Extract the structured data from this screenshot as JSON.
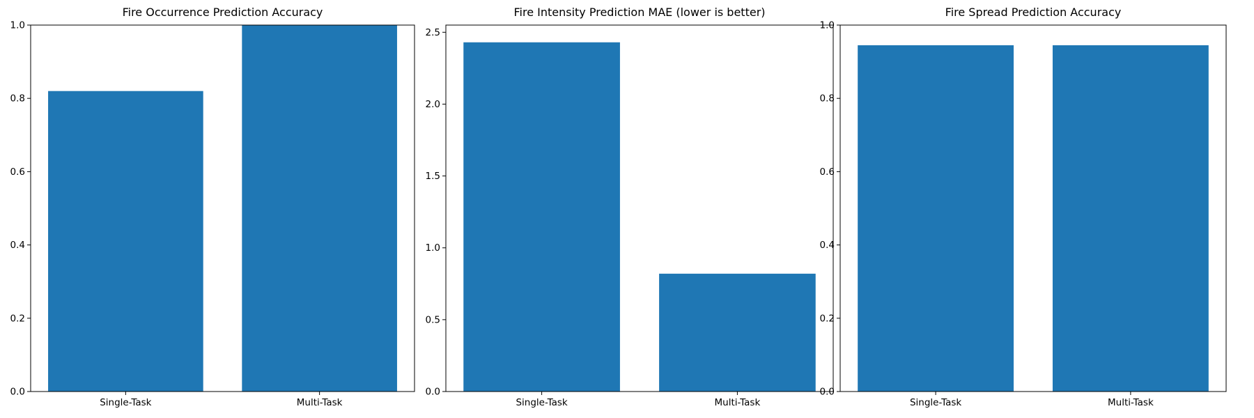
{
  "chart_data": [
    {
      "type": "bar",
      "title": "Fire Occurrence Prediction Accuracy",
      "xlabel": "",
      "ylabel": "",
      "categories": [
        "Single-Task",
        "Multi-Task"
      ],
      "values": [
        0.82,
        1.0
      ],
      "ylim": [
        0,
        1.0
      ],
      "yticks": [
        "0.0",
        "0.2",
        "0.4",
        "0.6",
        "0.8",
        "1.0"
      ],
      "bar_color": "#1f77b4",
      "grid": false
    },
    {
      "type": "bar",
      "title": "Fire Intensity Prediction MAE (lower is better)",
      "xlabel": "",
      "ylabel": "",
      "categories": [
        "Single-Task",
        "Multi-Task"
      ],
      "values": [
        2.43,
        0.82
      ],
      "ylim": [
        0,
        2.55
      ],
      "yticks": [
        "0.0",
        "0.5",
        "1.0",
        "1.5",
        "2.0",
        "2.5"
      ],
      "bar_color": "#1f77b4",
      "grid": false
    },
    {
      "type": "bar",
      "title": "Fire Spread Prediction Accuracy",
      "xlabel": "",
      "ylabel": "",
      "categories": [
        "Single-Task",
        "Multi-Task"
      ],
      "values": [
        0.945,
        0.945
      ],
      "ylim": [
        0,
        1.0
      ],
      "yticks": [
        "0.0",
        "0.2",
        "0.4",
        "0.6",
        "0.8",
        "1.0"
      ],
      "bar_color": "#1f77b4",
      "grid": false
    }
  ]
}
